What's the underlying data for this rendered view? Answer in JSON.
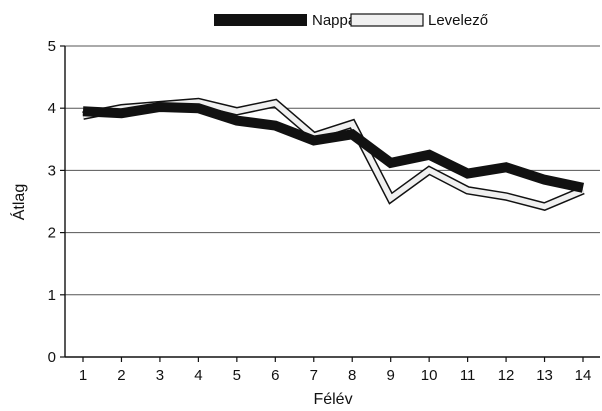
{
  "chart_data": {
    "type": "line",
    "x": [
      1,
      2,
      3,
      4,
      5,
      6,
      7,
      8,
      9,
      10,
      11,
      12,
      13,
      14
    ],
    "xlabel": "Félév",
    "ylabel": "Átlag",
    "ylim": [
      0,
      5
    ],
    "yticks": [
      0,
      1,
      2,
      3,
      4,
      5
    ],
    "grid": true,
    "legend_position": "top-center",
    "series": [
      {
        "name": "Nappali",
        "style": "thick-black",
        "color": "#111111",
        "values": [
          3.95,
          3.92,
          4.02,
          4.0,
          3.8,
          3.72,
          3.48,
          3.58,
          3.12,
          3.25,
          2.95,
          3.05,
          2.85,
          2.72
        ]
      },
      {
        "name": "Levelező",
        "style": "outlined-white",
        "color": "#f0f0f0",
        "values": [
          3.88,
          4.0,
          4.05,
          4.1,
          3.95,
          4.08,
          3.55,
          3.75,
          2.55,
          3.0,
          2.68,
          2.58,
          2.42,
          2.68
        ]
      }
    ]
  }
}
